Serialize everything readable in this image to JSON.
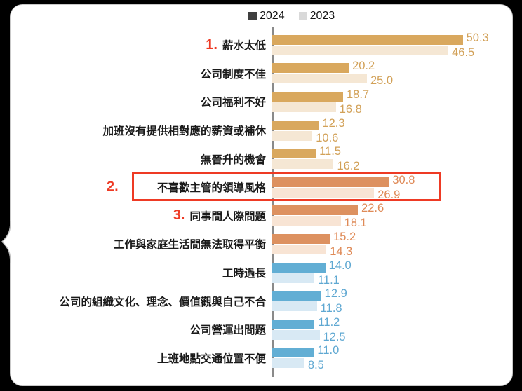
{
  "legend": {
    "items": [
      {
        "label": "2024",
        "swatch": "#3f3f3f"
      },
      {
        "label": "2023",
        "swatch": "#d9d9d9"
      }
    ]
  },
  "colors": {
    "gold_2024": "#D9A85E",
    "gold_2023": "#F5E7D4",
    "orange_2024": "#DD9160",
    "orange_2023": "#F8E4D4",
    "blue_2024": "#62AED4",
    "blue_2023": "#D8E9F4",
    "gold_label": "#D2A158",
    "orange_label": "#DF8A57",
    "blue_label": "#5FA8D2",
    "highlight_red": "#EE3A24",
    "axis_gray": "#8a8a8a",
    "category_text": "#1a1a1a"
  },
  "chart_data": {
    "type": "bar",
    "orientation": "horizontal",
    "title": "",
    "xlabel": "",
    "ylabel": "",
    "xlim": [
      0,
      60
    ],
    "grid": false,
    "legend_position": "top",
    "categories": [
      "薪水太低",
      "公司制度不佳",
      "公司福利不好",
      "加班沒有提供相對應的薪資或補休",
      "無晉升的機會",
      "不喜歡主管的領導風格",
      "同事間人際問題",
      "工作與家庭生活間無法取得平衡",
      "工時過長",
      "公司的組織文化、理念、價值觀與自己不合",
      "公司營運出問題",
      "上班地點交通位置不便"
    ],
    "series": [
      {
        "name": "2024",
        "values": [
          50.3,
          20.2,
          18.7,
          12.3,
          11.5,
          30.8,
          22.6,
          15.2,
          14.0,
          12.9,
          11.2,
          11.0
        ]
      },
      {
        "name": "2023",
        "values": [
          46.5,
          25.0,
          16.8,
          10.6,
          16.2,
          26.9,
          18.1,
          14.3,
          11.1,
          11.8,
          12.5,
          8.5
        ]
      }
    ],
    "row_color_groups": [
      "gold",
      "gold",
      "gold",
      "gold",
      "gold",
      "orange",
      "orange",
      "orange",
      "blue",
      "blue",
      "blue",
      "blue"
    ],
    "rank_annotations": [
      {
        "row": 0,
        "text": "1.",
        "placement": "inline"
      },
      {
        "row": 5,
        "text": "2.",
        "placement": "outside-left"
      },
      {
        "row": 6,
        "text": "3.",
        "placement": "inline"
      }
    ],
    "highlighted_row": 5
  }
}
